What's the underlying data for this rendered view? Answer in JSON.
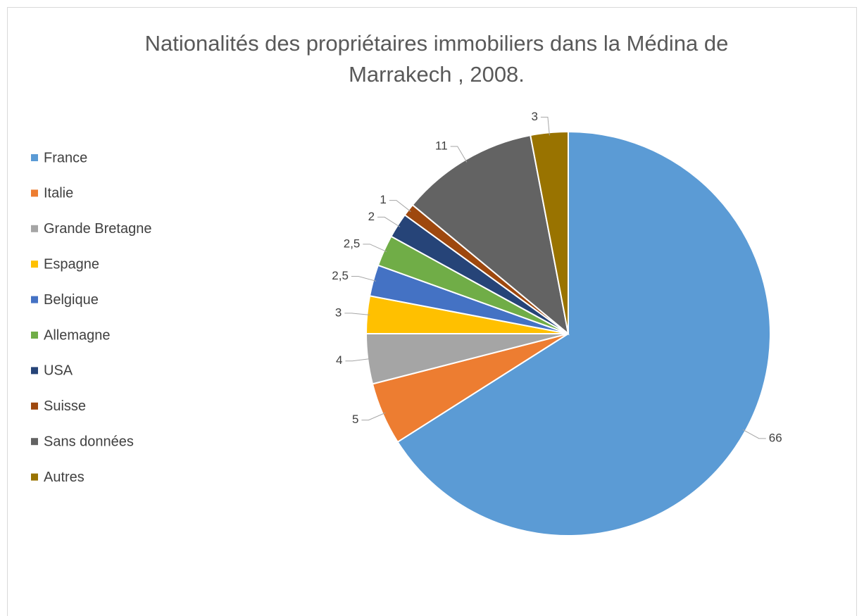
{
  "chart_data": {
    "type": "pie",
    "title": "Nationalités des propriétaires immobiliers dans la Médina de Marrakech , 2008.",
    "categories": [
      "France",
      "Italie",
      "Grande Bretagne",
      "Espagne",
      "Belgique",
      "Allemagne",
      "USA",
      "Suisse",
      "Sans données",
      "Autres"
    ],
    "values": [
      66,
      5,
      4,
      3,
      2.5,
      2.5,
      2,
      1,
      11,
      3
    ],
    "value_labels": [
      "66",
      "5",
      "4",
      "3",
      "2,5",
      "2,5",
      "2",
      "1",
      "11",
      "3"
    ],
    "colors": [
      "#5b9bd5",
      "#ed7d31",
      "#a5a5a5",
      "#ffc000",
      "#4472c4",
      "#70ad47",
      "#264478",
      "#9e480e",
      "#636363",
      "#997300"
    ],
    "legend": "left"
  }
}
